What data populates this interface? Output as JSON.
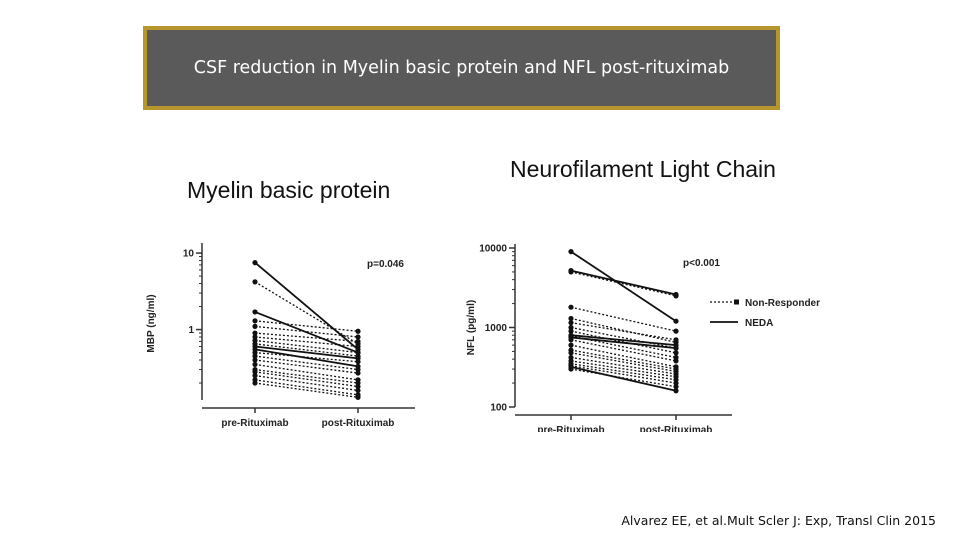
{
  "header": {
    "title": "CSF reduction in Myelin basic protein and NFL post-rituximab"
  },
  "panels": {
    "left_title": "Myelin basic protein",
    "right_title": "Neurofilament Light Chain"
  },
  "citation": "Alvarez EE, et al.Mult Scler J: Exp, Transl Clin 2015",
  "colors": {
    "title_bg": "#5a5a5a",
    "title_border": "#b8962e",
    "line": "#111111"
  },
  "chart_data": [
    {
      "type": "line",
      "log_scale": true,
      "categories": [
        "pre-Rituximab",
        "post-Rituximab"
      ],
      "ylabel": "MBP (ng/ml)",
      "yticks": [
        {
          "v": 10,
          "label": "10"
        },
        {
          "v": 1,
          "label": "1"
        }
      ],
      "ylim": [
        0.12,
        12
      ],
      "annotation": "p=0.046",
      "neda_pairs": [
        [
          7.5,
          0.55
        ],
        [
          1.7,
          0.5
        ],
        [
          0.6,
          0.42
        ],
        [
          0.55,
          0.33
        ]
      ],
      "nonresponder_pairs": [
        [
          4.2,
          0.65
        ],
        [
          1.3,
          0.95
        ],
        [
          1.1,
          0.8
        ],
        [
          0.9,
          0.7
        ],
        [
          0.8,
          0.6
        ],
        [
          0.72,
          0.5
        ],
        [
          0.65,
          0.45
        ],
        [
          0.5,
          0.38
        ],
        [
          0.45,
          0.3
        ],
        [
          0.4,
          0.27
        ],
        [
          0.35,
          0.22
        ],
        [
          0.3,
          0.2
        ],
        [
          0.28,
          0.18
        ],
        [
          0.25,
          0.16
        ],
        [
          0.22,
          0.14
        ],
        [
          0.2,
          0.13
        ]
      ]
    },
    {
      "type": "line",
      "log_scale": true,
      "categories": [
        "pre-Rituximab",
        "post-Rituximab"
      ],
      "ylabel": "NFL (pg/ml)",
      "yticks": [
        {
          "v": 10000,
          "label": "10000"
        },
        {
          "v": 1000,
          "label": "1000"
        },
        {
          "v": 100,
          "label": "100"
        }
      ],
      "ylim": [
        100,
        10000
      ],
      "annotation": "p<0.001",
      "legend": [
        "Non-Responder",
        "NEDA"
      ],
      "legend_position": "right",
      "neda_pairs": [
        [
          9000,
          1200
        ],
        [
          5200,
          2600
        ],
        [
          800,
          600
        ],
        [
          750,
          550
        ],
        [
          320,
          160
        ]
      ],
      "nonresponder_pairs": [
        [
          5000,
          2500
        ],
        [
          1800,
          900
        ],
        [
          1300,
          650
        ],
        [
          1150,
          700
        ],
        [
          1000,
          550
        ],
        [
          900,
          480
        ],
        [
          780,
          420
        ],
        [
          700,
          380
        ],
        [
          600,
          320
        ],
        [
          520,
          300
        ],
        [
          480,
          280
        ],
        [
          420,
          260
        ],
        [
          380,
          240
        ],
        [
          350,
          220
        ],
        [
          330,
          200
        ],
        [
          300,
          180
        ]
      ]
    }
  ]
}
